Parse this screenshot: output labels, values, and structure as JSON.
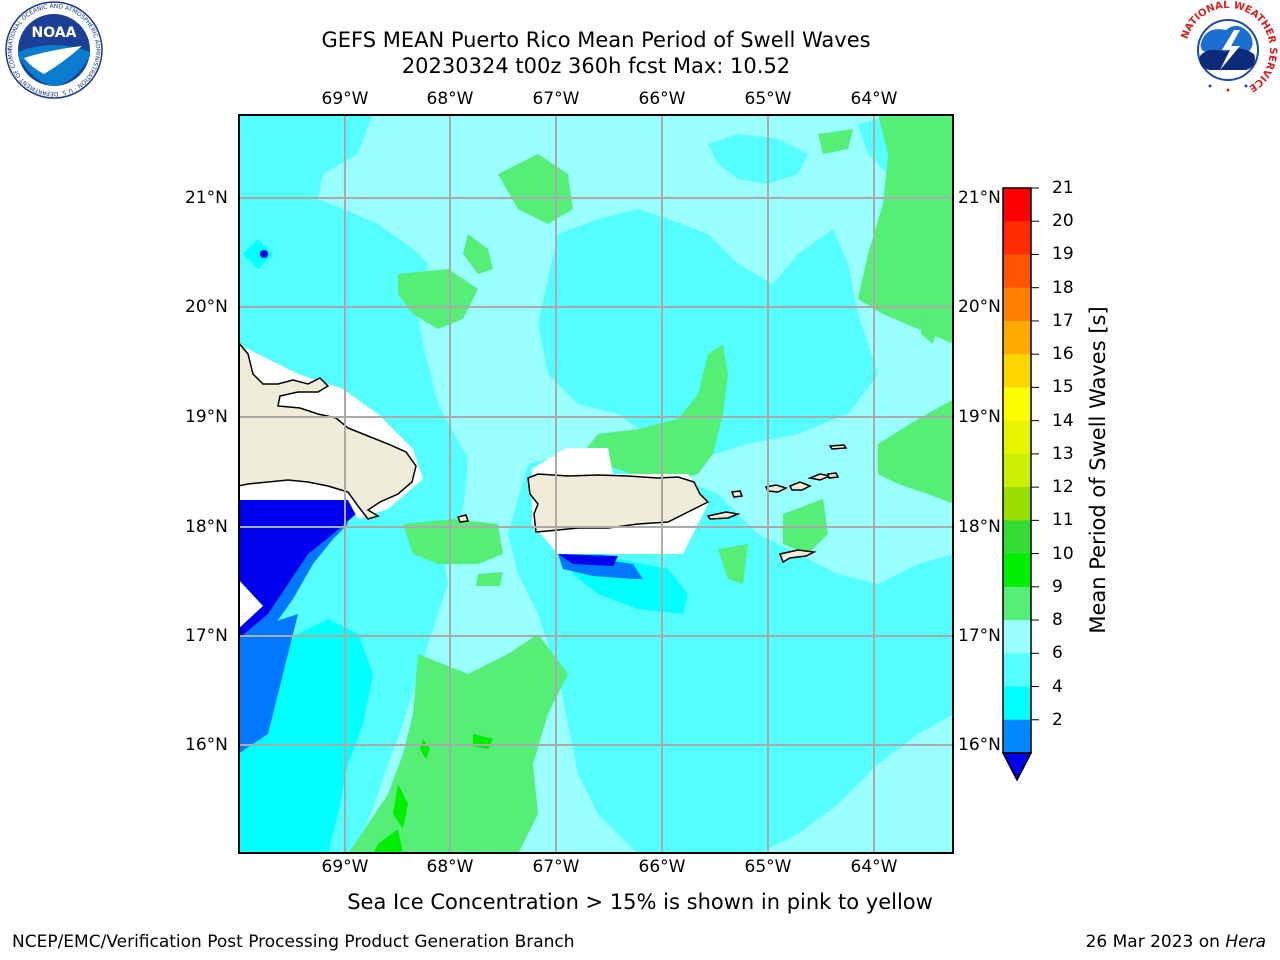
{
  "title": {
    "line1": "GEFS MEAN Puerto Rico Mean Period of Swell Waves",
    "line2": "20230324 t00z 360h fcst   Max: 10.52"
  },
  "map": {
    "lon_labels": [
      "69°W",
      "68°W",
      "67°W",
      "66°W",
      "65°W",
      "64°W"
    ],
    "lat_labels": [
      "21°N",
      "20°N",
      "19°N",
      "18°N",
      "17°N",
      "16°N"
    ],
    "lon_range": [
      -70.0,
      -63.3
    ],
    "lat_range": [
      15.0,
      21.75
    ],
    "grid": true
  },
  "colorbar": {
    "label": "Mean Period of Swell Waves [s]",
    "ticks": [
      "21",
      "20",
      "19",
      "18",
      "17",
      "16",
      "15",
      "14",
      "13",
      "12",
      "11",
      "10",
      "9",
      "8",
      "6",
      "4",
      "2"
    ],
    "colors": [
      "#ff0000",
      "#ff2a00",
      "#ff5500",
      "#ff8000",
      "#ffaa00",
      "#ffd500",
      "#ffff00",
      "#e8f700",
      "#ccee00",
      "#99dd00",
      "#33dd33",
      "#00ee00",
      "#55ee77",
      "#99ffff",
      "#55ffff",
      "#00ffff",
      "#0088ff"
    ],
    "under_color": "#0000ee"
  },
  "subtitle": "Sea Ice Concentration > 15% is shown in pink to yellow",
  "footer": {
    "left": "NCEP/EMC/Verification Post Processing Product Generation Branch",
    "date": "26 Mar 2023 on ",
    "host": "Hera"
  },
  "logos": {
    "noaa_text": "NOAA",
    "noaa_ring": "NATIONAL OCEANIC AND ATMOSPHERIC ADMINISTRATION · U.S. DEPARTMENT OF COMMERCE",
    "nws_ring": "NATIONAL WEATHER SERVICE"
  }
}
